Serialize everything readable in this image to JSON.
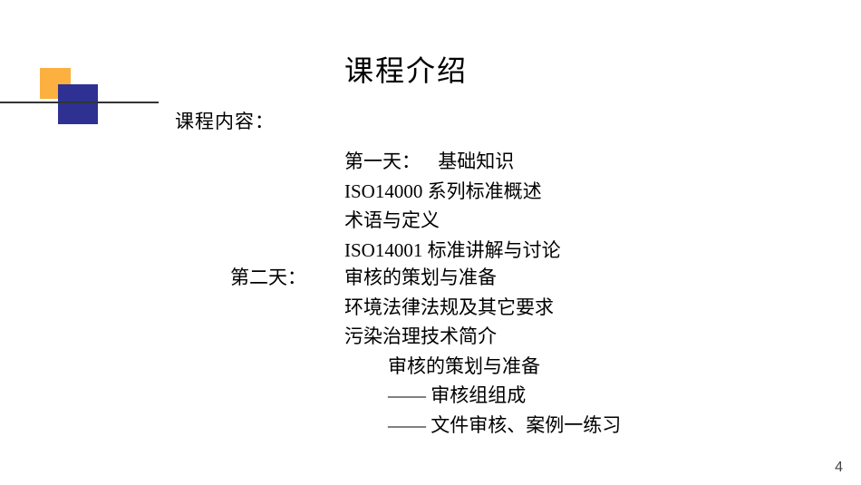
{
  "title": "课程介绍",
  "content_label": "课程内容：",
  "day1": {
    "label": "第一天：",
    "heading": "基础知识",
    "items": [
      "ISO14000 系列标准概述",
      "术语与定义",
      "ISO14001 标准讲解与讨论"
    ]
  },
  "day2": {
    "label": "第二天：",
    "heading": "审核的策划与准备",
    "items": [
      "环境法律法规及其它要求",
      "污染治理技术简介"
    ],
    "sub_heading": "审核的策划与准备",
    "sub_items": [
      "—— 审核组组成",
      "—— 文件审核、案例一练习"
    ]
  },
  "page_number": "4",
  "colors": {
    "yellow_square": "#fbb040",
    "blue_square": "#2e3192",
    "line": "#333333",
    "background": "#ffffff"
  }
}
